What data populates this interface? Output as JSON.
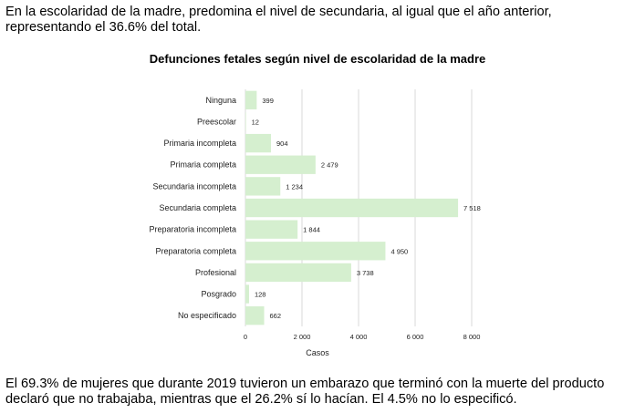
{
  "intro_text": "En la escolaridad de la madre, predomina el nivel de secundaria, al igual que el año anterior, representando el 36.6% del total.",
  "footer_text": "El 69.3% de mujeres que durante 2019 tuvieron un embarazo que terminó con la muerte del producto declaró que no trabajaba, mientras que el 26.2% sí lo hacían. El 4.5% no lo especificó.",
  "chart_data": {
    "type": "bar",
    "orientation": "horizontal",
    "title": "Defunciones fetales según nivel de escolaridad de la madre",
    "xlabel": "Casos",
    "ylabel": "",
    "xlim": [
      0,
      8000
    ],
    "ticks": [
      0,
      2000,
      4000,
      6000,
      8000
    ],
    "tick_labels": [
      "0",
      "2 000",
      "4 000",
      "6 000",
      "8 000"
    ],
    "grid": true,
    "bar_color": "#d5efcf",
    "categories": [
      "Ninguna",
      "Preescolar",
      "Primaria incompleta",
      "Primaria completa",
      "Secundaria incompleta",
      "Secundaria completa",
      "Preparatoria incompleta",
      "Preparatoria completa",
      "Profesional",
      "Posgrado",
      "No especificado"
    ],
    "values": [
      399,
      12,
      904,
      2479,
      1234,
      7518,
      1844,
      4950,
      3738,
      128,
      662
    ],
    "value_labels": [
      "399",
      "12",
      "904",
      "2 479",
      "1 234",
      "7 518",
      "1 844",
      "4 950",
      "3 738",
      "128",
      "662"
    ]
  }
}
